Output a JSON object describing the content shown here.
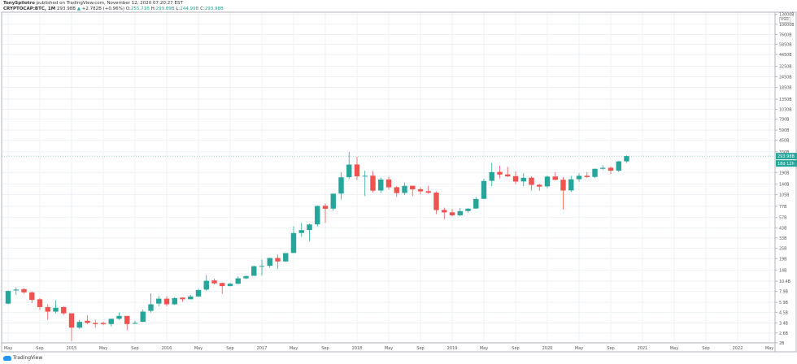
{
  "header": {
    "author": "TonySpilotro",
    "published_text": "published on TradingView.com, November 12, 2020 07:20:27 EST",
    "symbol": "CRYPTOCAP:BTC, 1M",
    "last": "293.98B",
    "change_arrow": "▲",
    "change": "+2.782B (+0.96%)",
    "open_label": "O:",
    "open": "255.71B",
    "high_label": "H:",
    "high": "299.89B",
    "low_label": "L:",
    "low": "244.99B",
    "close_label": "C:",
    "close": "293.98B"
  },
  "footer": {
    "logo_text": "TradingView"
  },
  "colors": {
    "up": "#26a69a",
    "down": "#ef5350",
    "grid": "#eef2f6",
    "axis": "#b2b5be"
  },
  "chart_data": {
    "type": "candlestick",
    "title": "",
    "scale": "log",
    "grid": true,
    "currency_label": "USD",
    "price_tag": {
      "label": "293.98B",
      "value": 293.988
    },
    "countdown_tag": "18d 12h",
    "y_ticks": [
      {
        "label": "13000B",
        "value": 13000
      },
      {
        "label": "10000B",
        "value": 10000
      },
      {
        "label": "7600B",
        "value": 7600
      },
      {
        "label": "5850B",
        "value": 5850
      },
      {
        "label": "4450B",
        "value": 4450
      },
      {
        "label": "3250B",
        "value": 3250
      },
      {
        "label": "2450B",
        "value": 2450
      },
      {
        "label": "1850B",
        "value": 1850
      },
      {
        "label": "1350B",
        "value": 1350
      },
      {
        "label": "1030B",
        "value": 1030
      },
      {
        "label": "790B",
        "value": 790
      },
      {
        "label": "590B",
        "value": 590
      },
      {
        "label": "450B",
        "value": 450
      },
      {
        "label": "330B",
        "value": 330
      },
      {
        "label": "190B",
        "value": 190
      },
      {
        "label": "140B",
        "value": 140
      },
      {
        "label": "105B",
        "value": 105
      },
      {
        "label": "77B",
        "value": 77
      },
      {
        "label": "57B",
        "value": 57
      },
      {
        "label": "43B",
        "value": 43
      },
      {
        "label": "33B",
        "value": 33
      },
      {
        "label": "25B",
        "value": 25
      },
      {
        "label": "19B",
        "value": 19
      },
      {
        "label": "14B",
        "value": 14
      },
      {
        "label": "10.4B",
        "value": 10.4
      },
      {
        "label": "7.9B",
        "value": 7.9
      },
      {
        "label": "5.9B",
        "value": 5.9
      },
      {
        "label": "4.5B",
        "value": 4.5
      },
      {
        "label": "3.4B",
        "value": 3.4
      },
      {
        "label": "2.6B",
        "value": 2.6
      },
      {
        "label": "2B",
        "value": 2
      }
    ],
    "x_ticks": [
      "May",
      "Sep",
      "2015",
      "May",
      "Sep",
      "2016",
      "May",
      "Sep",
      "2017",
      "May",
      "Sep",
      "2018",
      "May",
      "Sep",
      "2019",
      "May",
      "Sep",
      "2020",
      "May",
      "Sep",
      "2021",
      "May",
      "Sep",
      "2022",
      "May"
    ],
    "x_start": "2014-05",
    "candles_ohlc": [
      [
        5.7,
        8.1,
        5.6,
        8.0
      ],
      [
        8.1,
        8.8,
        7.2,
        8.3
      ],
      [
        8.4,
        8.6,
        7.4,
        7.7
      ],
      [
        7.7,
        7.9,
        5.8,
        6.3
      ],
      [
        6.4,
        6.6,
        4.8,
        5.2
      ],
      [
        5.2,
        5.6,
        3.7,
        4.6
      ],
      [
        4.6,
        6.2,
        4.4,
        5.1
      ],
      [
        5.2,
        5.3,
        4.2,
        4.4
      ],
      [
        4.4,
        4.4,
        2.1,
        3.0
      ],
      [
        3.0,
        3.7,
        2.9,
        3.5
      ],
      [
        3.6,
        4.2,
        3.3,
        3.4
      ],
      [
        3.4,
        3.7,
        3.0,
        3.3
      ],
      [
        3.4,
        3.5,
        3.2,
        3.3
      ],
      [
        3.3,
        3.8,
        3.1,
        3.8
      ],
      [
        3.8,
        4.5,
        3.7,
        4.1
      ],
      [
        4.1,
        4.1,
        2.8,
        3.3
      ],
      [
        3.4,
        3.6,
        3.3,
        3.4
      ],
      [
        3.5,
        4.9,
        3.5,
        4.6
      ],
      [
        4.7,
        7.5,
        4.5,
        5.6
      ],
      [
        5.7,
        7.0,
        5.3,
        6.5
      ],
      [
        6.5,
        7.0,
        5.3,
        5.6
      ],
      [
        5.6,
        6.8,
        5.5,
        6.6
      ],
      [
        6.7,
        6.7,
        6.0,
        6.4
      ],
      [
        6.4,
        7.2,
        6.4,
        6.9
      ],
      [
        6.9,
        8.5,
        6.8,
        8.2
      ],
      [
        8.3,
        12.2,
        8.0,
        10.5
      ],
      [
        10.6,
        11.1,
        9.5,
        9.8
      ],
      [
        9.9,
        10.0,
        7.4,
        9.1
      ],
      [
        9.1,
        9.9,
        9.1,
        9.7
      ],
      [
        9.7,
        11.8,
        9.6,
        11.2
      ],
      [
        11.2,
        12.0,
        11.0,
        11.9
      ],
      [
        12.0,
        15.7,
        12.0,
        15.5
      ],
      [
        15.5,
        18.5,
        12.1,
        15.6
      ],
      [
        15.7,
        19.4,
        14.9,
        19.3
      ],
      [
        19.3,
        21.1,
        14.5,
        17.6
      ],
      [
        17.6,
        22.0,
        17.4,
        22.0
      ],
      [
        22.1,
        45.1,
        22.1,
        37.6
      ],
      [
        37.7,
        49.2,
        33.9,
        40.7
      ],
      [
        40.8,
        48.5,
        30.1,
        47.3
      ],
      [
        47.4,
        78.4,
        44.9,
        77.6
      ],
      [
        78.0,
        83.0,
        49.3,
        72.0
      ],
      [
        72.3,
        107.7,
        68.3,
        107.7
      ],
      [
        108.0,
        192.1,
        91.9,
        167.0
      ],
      [
        167.5,
        330.0,
        159.1,
        234.5
      ],
      [
        235.2,
        289.0,
        154.6,
        171.4
      ],
      [
        172.1,
        199.1,
        101.2,
        173.8
      ],
      [
        174.4,
        198.1,
        111.7,
        116.8
      ],
      [
        117.3,
        165.8,
        109.7,
        157.1
      ],
      [
        157.5,
        169.8,
        120.2,
        127.7
      ],
      [
        128.1,
        132.5,
        98.8,
        109.4
      ],
      [
        109.9,
        145.8,
        104.2,
        132.7
      ],
      [
        133.2,
        133.7,
        101.3,
        121.0
      ],
      [
        121.3,
        127.9,
        105.4,
        114.6
      ],
      [
        115.0,
        133.3,
        107.5,
        110.5
      ],
      [
        110.8,
        114.3,
        62.6,
        69.6
      ],
      [
        69.8,
        74.2,
        54.4,
        65.3
      ],
      [
        65.5,
        71.8,
        58.8,
        60.4
      ],
      [
        60.5,
        73.7,
        59.3,
        67.6
      ],
      [
        67.8,
        73.0,
        65.1,
        72.2
      ],
      [
        72.4,
        98.8,
        72.0,
        93.5
      ],
      [
        93.8,
        161.1,
        93.8,
        151.3
      ],
      [
        151.8,
        245.0,
        132.2,
        191.7
      ],
      [
        192.6,
        228.2,
        162.3,
        179.7
      ],
      [
        180.2,
        219.9,
        168.1,
        171.5
      ],
      [
        172.1,
        195.7,
        139.1,
        149.0
      ],
      [
        149.4,
        186.3,
        131.4,
        164.7
      ],
      [
        165.2,
        171.5,
        117.3,
        136.3
      ],
      [
        136.7,
        140.3,
        116.7,
        130.1
      ],
      [
        130.9,
        174.4,
        124.9,
        170.2
      ],
      [
        170.6,
        191.6,
        154.2,
        155.9
      ],
      [
        156.3,
        168.2,
        70.5,
        117.3
      ],
      [
        117.6,
        173.8,
        112.9,
        158.4
      ],
      [
        158.6,
        185.1,
        148.9,
        173.7
      ],
      [
        174.1,
        191.6,
        163.9,
        168.4
      ],
      [
        168.6,
        211.3,
        164.2,
        209.4
      ],
      [
        209.8,
        230.6,
        202.4,
        215.3
      ],
      [
        215.5,
        223.9,
        182.2,
        199.4
      ],
      [
        199.6,
        259.3,
        192.6,
        255.6
      ],
      [
        255.7158,
        299.8958,
        244.9958,
        293.988
      ]
    ]
  }
}
